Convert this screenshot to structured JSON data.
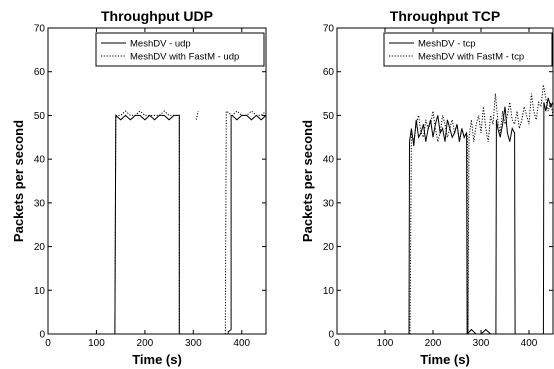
{
  "chart_data": [
    {
      "type": "line",
      "title": "Throughput UDP",
      "xlabel": "Time (s)",
      "ylabel": "Packets per second",
      "xlim": [
        0,
        450
      ],
      "ylim": [
        0,
        70
      ],
      "xticks": [
        0,
        100,
        200,
        300,
        400
      ],
      "yticks": [
        0,
        10,
        20,
        30,
        40,
        50,
        60,
        70
      ],
      "grid": false,
      "legend": "top-right",
      "series": [
        {
          "name": "MeshDV - udp",
          "style": "solid",
          "color": "#000000",
          "segments": [
            {
              "x": [
                0,
                138,
                138,
                140,
                150,
                160,
                170,
                180,
                190,
                200,
                210,
                220,
                230,
                240,
                250,
                260,
                270,
                271,
                271,
                372,
                372,
                378,
                378,
                380,
                390,
                400,
                410,
                420,
                430,
                440,
                450
              ],
              "y": [
                0,
                0,
                1,
                50,
                49,
                50,
                49,
                50,
                50,
                49,
                50,
                49,
                50,
                50,
                49,
                50,
                50,
                50,
                0,
                0,
                0.5,
                1,
                50,
                50,
                49,
                50,
                50,
                49,
                50,
                49,
                50
              ]
            }
          ]
        },
        {
          "name": "MeshDV with FastM - udp",
          "style": "dotted",
          "color": "#000000",
          "segments": [
            {
              "x": [
                138,
                140,
                150,
                160,
                170,
                180,
                190,
                200,
                210,
                220,
                230,
                240,
                250,
                260,
                270,
                271,
                271
              ],
              "y": [
                0,
                50,
                50,
                51,
                50,
                50,
                51,
                50,
                50,
                50,
                50,
                51,
                50,
                50,
                50,
                50,
                0
              ]
            },
            {
              "x": [
                306,
                310
              ],
              "y": [
                49,
                51
              ]
            },
            {
              "x": [
                366,
                368,
                380,
                390,
                400,
                410,
                420,
                430,
                440,
                450
              ],
              "y": [
                0,
                51,
                50,
                51,
                50,
                50,
                51,
                50,
                50,
                51
              ]
            }
          ]
        }
      ]
    },
    {
      "type": "line",
      "title": "Throughput TCP",
      "xlabel": "Time (s)",
      "ylabel": "Packets per second",
      "xlim": [
        0,
        450
      ],
      "ylim": [
        0,
        70
      ],
      "xticks": [
        0,
        100,
        200,
        300,
        400
      ],
      "yticks": [
        0,
        10,
        20,
        30,
        40,
        50,
        60,
        70
      ],
      "grid": false,
      "legend": "top-right",
      "series": [
        {
          "name": "MeshDV - tcp",
          "style": "solid",
          "color": "#000000",
          "segments": [
            {
              "x": [
                0,
                150,
                151,
                155,
                160,
                165,
                170,
                175,
                180,
                185,
                190,
                195,
                200,
                205,
                210,
                215,
                220,
                225,
                230,
                235,
                240,
                245,
                250,
                255,
                260,
                265,
                270,
                271
              ],
              "y": [
                0,
                0,
                44,
                47,
                43,
                49,
                45,
                46,
                48,
                44,
                47,
                49,
                45,
                48,
                50,
                46,
                47,
                44,
                49,
                47,
                45,
                46,
                48,
                44,
                47,
                45,
                46,
                0
              ]
            },
            {
              "x": [
                271,
                280,
                290,
                300,
                310,
                320,
                330,
                331
              ],
              "y": [
                0,
                1,
                0,
                0,
                1,
                0,
                0,
                0
              ]
            },
            {
              "x": [
                331,
                332,
                335,
                340,
                345,
                350,
                355,
                360,
                365,
                370,
                371
              ],
              "y": [
                0,
                49,
                47,
                45,
                48,
                52,
                46,
                44,
                47,
                46,
                0
              ]
            },
            {
              "x": [
                371,
                400,
                430,
                431,
                435,
                440,
                445,
                450
              ],
              "y": [
                0,
                0,
                0,
                53,
                51,
                54,
                52,
                53
              ]
            }
          ]
        },
        {
          "name": "MeshDV with FastM - tcp",
          "style": "dotted",
          "color": "#000000",
          "segments": [
            {
              "x": [
                152,
                155,
                160,
                165,
                170,
                175,
                180,
                185,
                190,
                195,
                200,
                205,
                210,
                215,
                220,
                225,
                230,
                235,
                240,
                245,
                250,
                255,
                260,
                265,
                270,
                272,
                273
              ],
              "y": [
                0,
                46,
                44,
                48,
                50,
                46,
                45,
                49,
                47,
                48,
                51,
                47,
                44,
                46,
                50,
                48,
                45,
                47,
                49,
                46,
                48,
                44,
                47,
                45,
                46,
                45,
                0
              ]
            },
            {
              "x": [
                273,
                275,
                280,
                285,
                290,
                295,
                300,
                305,
                310,
                315,
                320,
                325,
                330,
                335,
                340,
                345,
                350,
                355,
                360,
                365,
                370,
                375,
                380,
                385,
                390,
                395,
                400,
                405,
                410,
                415,
                420,
                425,
                430,
                435,
                440,
                445,
                450
              ],
              "y": [
                0,
                45,
                49,
                44,
                48,
                50,
                46,
                52,
                47,
                44,
                50,
                48,
                55,
                49,
                46,
                51,
                48,
                50,
                53,
                49,
                48,
                51,
                47,
                49,
                52,
                50,
                48,
                55,
                51,
                49,
                53,
                52,
                57,
                54,
                51,
                53,
                50
              ]
            }
          ]
        }
      ]
    }
  ]
}
